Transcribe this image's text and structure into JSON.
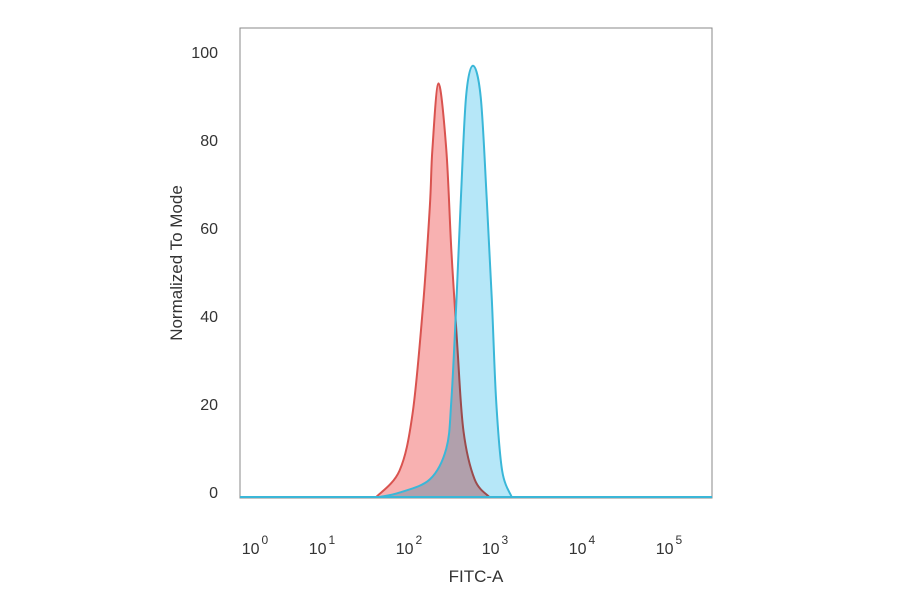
{
  "chart_data": {
    "type": "area",
    "title": "",
    "xlabel": "FITC-A",
    "ylabel": "Normalized To Mode",
    "x_scale": "log",
    "x_ticks": [
      {
        "base": "10",
        "exp": "0",
        "value": 1
      },
      {
        "base": "10",
        "exp": "1",
        "value": 10
      },
      {
        "base": "10",
        "exp": "2",
        "value": 100
      },
      {
        "base": "10",
        "exp": "3",
        "value": 1000
      },
      {
        "base": "10",
        "exp": "4",
        "value": 10000
      },
      {
        "base": "10",
        "exp": "5",
        "value": 100000
      }
    ],
    "y_ticks": [
      "0",
      "20",
      "40",
      "60",
      "80",
      "100"
    ],
    "ylim": [
      0,
      100
    ],
    "grid": false,
    "series": [
      {
        "color": "#d9534f",
        "fill": "#f7a3a3",
        "x": [
          34,
          63,
          89,
          117,
          141,
          151,
          178,
          219,
          251,
          295,
          347,
          468,
          692
        ],
        "y": [
          0,
          6,
          19,
          43,
          66,
          79,
          94,
          79,
          56,
          34,
          15,
          4,
          0
        ]
      },
      {
        "color": "#3ab7d8",
        "fill": "#a9e3f7",
        "x": [
          37,
          63,
          141,
          219,
          251,
          288,
          324,
          372,
          447,
          550,
          646,
          741,
          832,
          977,
          1259
        ],
        "y": [
          0,
          1,
          4,
          11,
          22,
          45,
          68,
          91,
          98,
          91,
          68,
          45,
          22,
          6,
          0
        ]
      }
    ]
  }
}
